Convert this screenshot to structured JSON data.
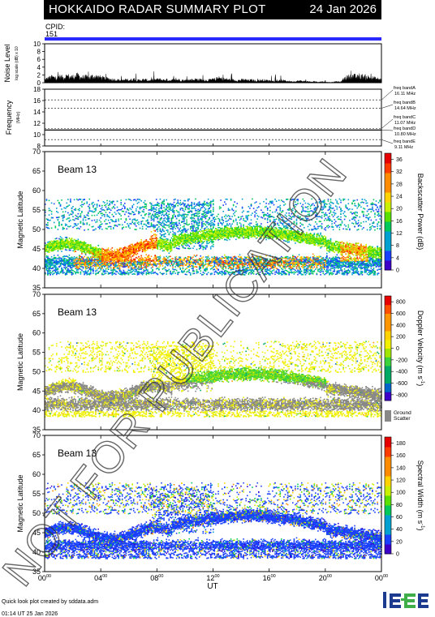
{
  "header": {
    "title": "HOKKAIDO RADAR SUMMARY PLOT",
    "date": "24 Jan 2026"
  },
  "cpid": {
    "label": "CPID:",
    "value": "151"
  },
  "watermark": "NOT FOR PUBLICATION",
  "footer": {
    "line1": "Quick look plot created by sddata.adm",
    "line2": "01:14 UT 25 Jan 2026"
  },
  "logo_text": "ISEE",
  "colors": {
    "cpid_bar": "#2a2aff",
    "ground_scatter": "#888888"
  },
  "chart_data": [
    {
      "type": "area",
      "panel": "noise",
      "ylabel": "Noise Level",
      "ylabel_sub": "log scale (dB) x 10",
      "ylim": [
        0,
        10
      ],
      "yticks": [
        0,
        2,
        4,
        6,
        8,
        10
      ],
      "xlim": [
        0,
        24
      ],
      "series": [
        {
          "values": [
            0.8,
            1.2,
            1.5,
            1.3,
            1.6,
            1.4,
            1.8,
            1.5,
            1.6,
            1.9,
            1.4,
            1.5,
            1.3,
            1.7,
            1.6,
            1.4,
            1.2,
            1.0,
            0.9,
            0.8,
            0.7,
            0.6,
            0.8,
            0.7,
            0.9,
            0.6,
            0.7,
            0.8,
            0.6,
            0.7,
            0.8,
            0.9,
            0.7,
            0.8,
            0.6,
            0.7,
            0.8,
            0.7,
            0.6,
            0.7,
            0.8,
            0.9,
            0.8,
            0.7,
            0.6,
            0.8,
            0.9,
            1.2,
            1.0,
            0.9,
            0.8,
            0.7,
            0.6,
            0.7,
            0.8,
            0.6,
            0.7,
            0.5,
            0.6,
            0.7,
            0.6,
            0.5,
            0.4,
            0.5,
            0.6,
            0.5,
            0.4,
            0.3,
            0.4,
            0.5,
            0.4,
            0.3,
            0.2,
            0.3,
            0.2,
            0.3,
            0.2,
            0.1,
            0.2,
            0.3,
            0.2,
            1.2,
            1.5,
            1.8,
            1.6,
            1.4,
            1.7,
            1.5,
            1.3,
            1.2,
            1.0,
            0.8
          ]
        }
      ]
    },
    {
      "type": "line",
      "panel": "frequency",
      "ylabel": "Frequency",
      "ylabel_sub": "(MHz)",
      "ylim": [
        8,
        18
      ],
      "yticks": [
        8,
        10,
        12,
        14,
        16,
        18
      ],
      "bands": [
        {
          "label": "freq bandA",
          "mhz_label": "16.11 MHz",
          "value": 16.11
        },
        {
          "label": "freq bandB",
          "mhz_label": "14.64 MHz",
          "value": 14.64
        },
        {
          "label": "freq bandC",
          "mhz_label": "11.07 MHz",
          "value": 11.07
        },
        {
          "label": "freq bandD",
          "mhz_label": "10.80 MHz",
          "value": 10.8
        },
        {
          "label": "freq bandE",
          "mhz_label": "9.11 MHz",
          "value": 9.11
        }
      ],
      "operating_frequency_mhz": 10.8
    },
    {
      "type": "heatmap",
      "panel": "power",
      "beam_label": "Beam 13",
      "ylabel": "Magnetic Latitude",
      "ylim": [
        35,
        70
      ],
      "yticks": [
        35,
        40,
        45,
        50,
        55,
        60,
        65,
        70
      ],
      "colorbar": {
        "label": "Backscatter Power (dB)",
        "ticks": [
          "0",
          "4",
          "8",
          "12",
          "16",
          "20",
          "24",
          "28",
          "32",
          "36"
        ],
        "range": [
          0,
          38
        ]
      }
    },
    {
      "type": "heatmap",
      "panel": "velocity",
      "beam_label": "Beam 13",
      "ylabel": "Magnetic Latitude",
      "ylim": [
        35,
        70
      ],
      "yticks": [
        35,
        40,
        45,
        50,
        55,
        60,
        65,
        70
      ],
      "colorbar": {
        "label": "Doppler Velocity (m s",
        "label_exp": "-1",
        "label_end": ")",
        "ticks": [
          "-800",
          "-600",
          "-400",
          "-200",
          "0",
          "200",
          "400",
          "600",
          "800"
        ],
        "range": [
          -900,
          900
        ],
        "gs_label_1": "Ground",
        "gs_label_2": "Scatter"
      }
    },
    {
      "type": "heatmap",
      "panel": "width",
      "beam_label": "Beam 13",
      "ylabel": "Magnetic Latitude",
      "ylim": [
        35,
        70
      ],
      "yticks": [
        35,
        40,
        45,
        50,
        55,
        60,
        65,
        70
      ],
      "colorbar": {
        "label": "Spectral Width (m s",
        "label_exp": "-1",
        "label_end": ")",
        "ticks": [
          "0",
          "20",
          "40",
          "60",
          "80",
          "100",
          "120",
          "140",
          "160",
          "180"
        ],
        "range": [
          0,
          190
        ]
      },
      "xlabel": "UT",
      "xticks": [
        "00",
        "04",
        "08",
        "12",
        "16",
        "20",
        "00"
      ],
      "xtick_sup": "00",
      "xlim": [
        0,
        24
      ]
    }
  ]
}
